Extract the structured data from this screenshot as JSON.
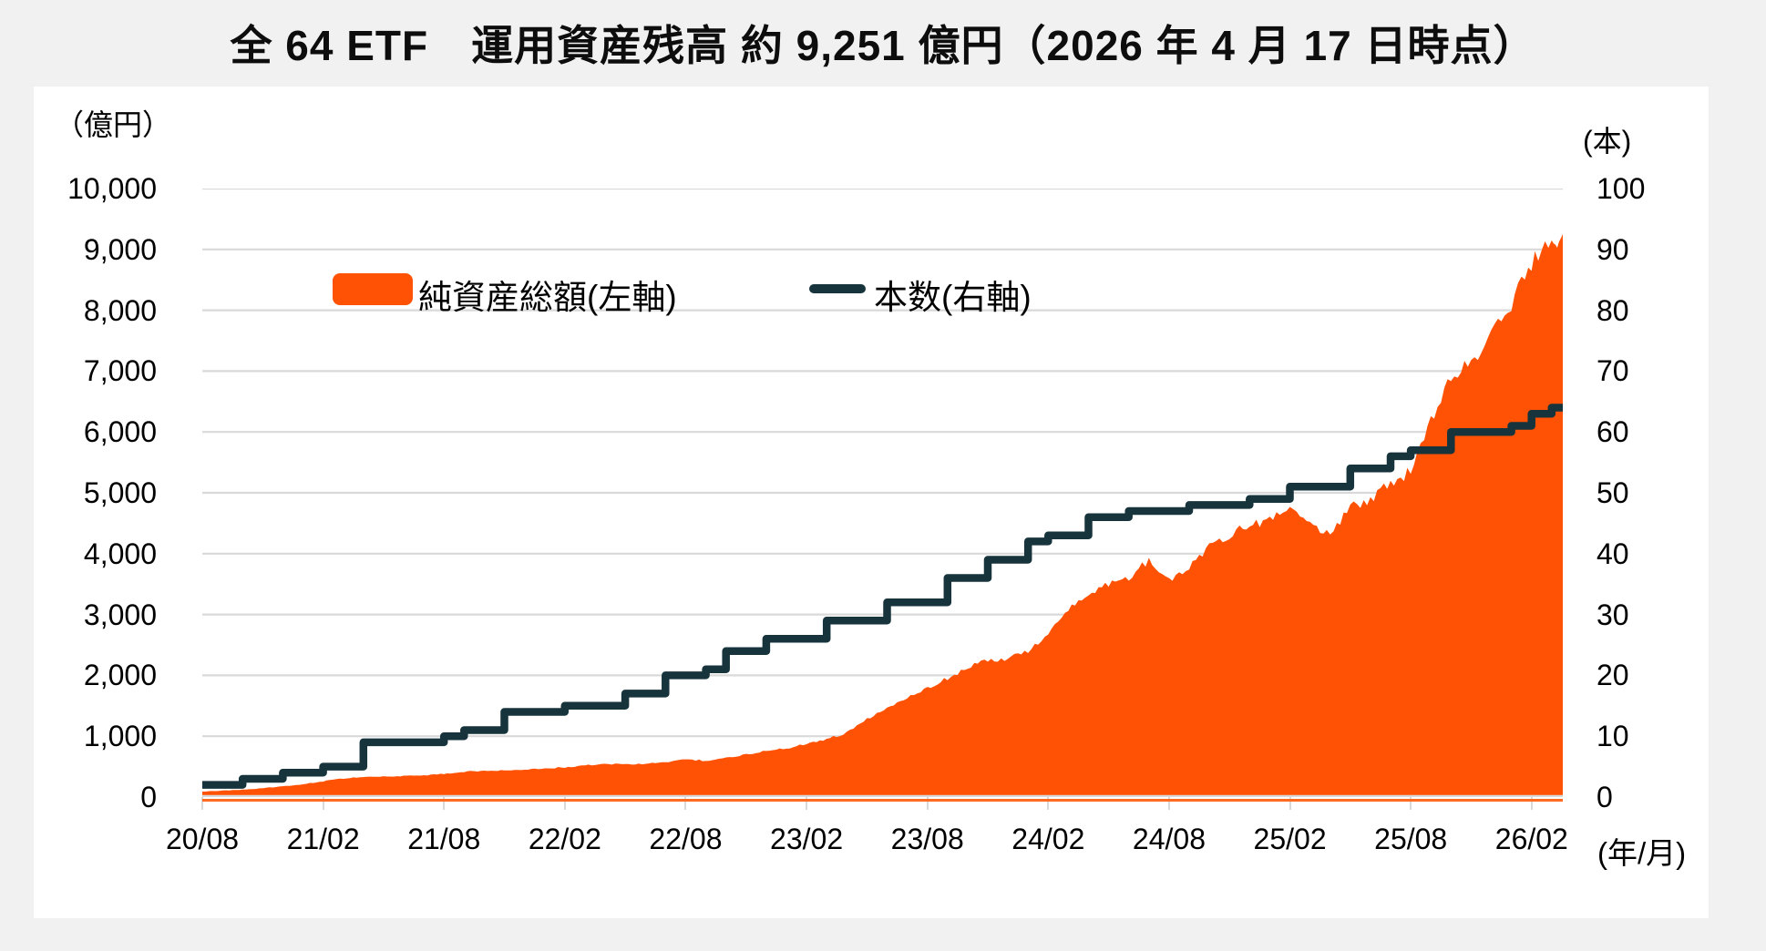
{
  "page": {
    "title": "全 64 ETF　運用資産残高 約 9,251 億円（2026 年 4 月 17 日時点）"
  },
  "legend": {
    "area_label": "純資産総額(左軸)",
    "line_label": "本数(右軸)"
  },
  "axes": {
    "left_unit": "（億円）",
    "right_unit": "(本)",
    "x_unit": "(年/月)",
    "left_ticks": [
      "10,000",
      "9,000",
      "8,000",
      "7,000",
      "6,000",
      "5,000",
      "4,000",
      "3,000",
      "2,000",
      "1,000",
      "0"
    ],
    "right_ticks": [
      "100",
      "90",
      "80",
      "70",
      "60",
      "50",
      "40",
      "30",
      "20",
      "10",
      "0"
    ],
    "x_ticks": [
      "20/08",
      "21/02",
      "21/08",
      "22/02",
      "22/08",
      "23/02",
      "23/08",
      "24/02",
      "24/08",
      "25/02",
      "25/08",
      "26/02"
    ]
  },
  "colors": {
    "area": "#ff5204",
    "line": "#17343c",
    "grid": "#d9d9d9",
    "axis_orange": "#ff6a22",
    "page_bg": "#f1f1f1",
    "panel_bg": "#ffffff",
    "text": "#000000"
  },
  "chart_data": {
    "type": "combo: area (left axis) + step line (right axis)",
    "title": "全 64 ETF　運用資産残高 約 9,251 億円（2026 年 4 月 17 日時点）",
    "x_label": "(年/月)",
    "left_axis_label": "（億円）",
    "right_axis_label": "(本)",
    "left_ylim": [
      0,
      10000
    ],
    "right_ylim": [
      0,
      100
    ],
    "grid": "horizontal light-gray lines every 1,000 (left) / 10 (right)",
    "legend_position": "inside plot, upper left",
    "months": [
      "2020-08",
      "2020-09",
      "2020-10",
      "2020-11",
      "2020-12",
      "2021-01",
      "2021-02",
      "2021-03",
      "2021-04",
      "2021-05",
      "2021-06",
      "2021-07",
      "2021-08",
      "2021-09",
      "2021-10",
      "2021-11",
      "2021-12",
      "2022-01",
      "2022-02",
      "2022-03",
      "2022-04",
      "2022-05",
      "2022-06",
      "2022-07",
      "2022-08",
      "2022-09",
      "2022-10",
      "2022-11",
      "2022-12",
      "2023-01",
      "2023-02",
      "2023-03",
      "2023-04",
      "2023-05",
      "2023-06",
      "2023-07",
      "2023-08",
      "2023-09",
      "2023-10",
      "2023-11",
      "2023-12",
      "2024-01",
      "2024-02",
      "2024-03",
      "2024-04",
      "2024-05",
      "2024-06",
      "2024-07",
      "2024-08",
      "2024-09",
      "2024-10",
      "2024-11",
      "2024-12",
      "2025-01",
      "2025-02",
      "2025-03",
      "2025-04",
      "2025-05",
      "2025-06",
      "2025-07",
      "2025-08",
      "2025-09",
      "2025-10",
      "2025-11",
      "2025-12",
      "2026-01",
      "2026-02",
      "2026-03",
      "2026-04"
    ],
    "series": [
      {
        "name": "純資産総額(左軸)",
        "type": "area",
        "axis": "left",
        "unit": "億円",
        "values": [
          90,
          105,
          120,
          145,
          175,
          210,
          260,
          305,
          330,
          340,
          345,
          355,
          380,
          415,
          430,
          440,
          455,
          470,
          490,
          520,
          545,
          535,
          550,
          575,
          615,
          600,
          640,
          700,
          760,
          800,
          870,
          950,
          1060,
          1280,
          1480,
          1640,
          1800,
          1950,
          2130,
          2250,
          2270,
          2400,
          2700,
          3100,
          3300,
          3500,
          3620,
          3900,
          3560,
          3800,
          4100,
          4300,
          4470,
          4560,
          4690,
          4480,
          4350,
          4750,
          4900,
          5150,
          5350,
          6150,
          6950,
          7150,
          7600,
          8100,
          8800,
          9100,
          9251
        ]
      },
      {
        "name": "本数(右軸)",
        "type": "step-line",
        "axis": "right",
        "unit": "本",
        "values": [
          2,
          2,
          3,
          3,
          4,
          4,
          5,
          5,
          9,
          9,
          9,
          9,
          10,
          11,
          11,
          14,
          14,
          14,
          15,
          15,
          15,
          17,
          17,
          20,
          20,
          21,
          24,
          24,
          26,
          26,
          26,
          29,
          29,
          29,
          32,
          32,
          32,
          36,
          36,
          39,
          39,
          42,
          43,
          43,
          46,
          46,
          47,
          47,
          47,
          48,
          48,
          48,
          49,
          49,
          51,
          51,
          51,
          54,
          54,
          56,
          57,
          57,
          60,
          60,
          60,
          61,
          63,
          64,
          64
        ]
      }
    ],
    "final_values": {
      "aum_oku_yen": 9251,
      "etf_count": 64,
      "as_of": "2026/04/17"
    }
  }
}
